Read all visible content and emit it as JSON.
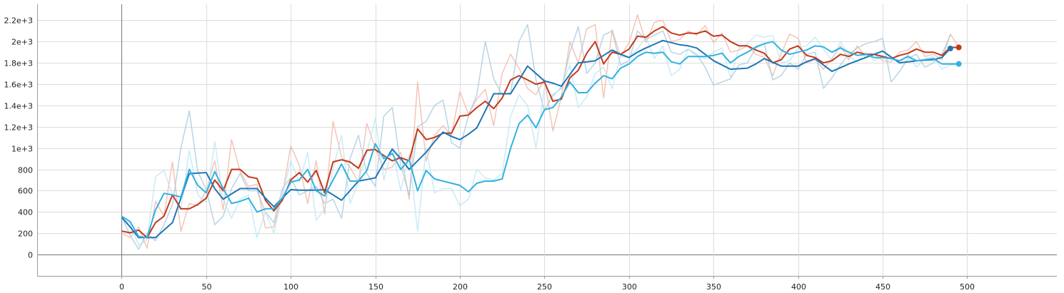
{
  "chart_data": {
    "type": "line",
    "xlim": [
      -50,
      553
    ],
    "ylim": [
      -200,
      2350
    ],
    "x_ticks": [
      0,
      50,
      100,
      150,
      200,
      250,
      300,
      350,
      400,
      450,
      500
    ],
    "x_tick_labels": [
      "0",
      "50",
      "100",
      "150",
      "200",
      "250",
      "300",
      "350",
      "400",
      "450",
      "500"
    ],
    "y_ticks": [
      0,
      200,
      400,
      600,
      800,
      1000,
      1200,
      1400,
      1600,
      1800,
      2000,
      2200
    ],
    "y_tick_labels": [
      "0",
      "200",
      "400",
      "600",
      "800",
      "1e+3",
      "1.2e+3",
      "1.4e+3",
      "1.6e+3",
      "1.8e+3",
      "2e+3",
      "2.2e+3"
    ],
    "grid": true,
    "smoothing": "raw series drawn faint behind smoothed series",
    "series": [
      {
        "color": "#c23a1c",
        "raw_color": "#f1b7a6",
        "end_marker": true,
        "x": [
          0,
          5,
          10,
          15,
          20,
          25,
          30,
          35,
          40,
          45,
          50,
          55,
          60,
          65,
          70,
          75,
          80,
          85,
          90,
          95,
          100,
          105,
          110,
          115,
          120,
          125,
          130,
          135,
          140,
          145,
          150,
          155,
          160,
          165,
          170,
          175,
          180,
          185,
          190,
          195,
          200,
          205,
          210,
          215,
          220,
          225,
          230,
          235,
          240,
          245,
          250,
          255,
          260,
          265,
          270,
          275,
          280,
          285,
          290,
          295,
          300,
          305,
          310,
          315,
          320,
          325,
          330,
          335,
          340,
          345,
          350,
          355,
          360,
          365,
          370,
          375,
          380,
          385,
          390,
          395,
          400,
          405,
          410,
          415,
          420,
          425,
          430,
          435,
          440,
          445,
          450,
          455,
          460,
          465,
          470,
          475,
          480,
          485,
          490,
          495
        ],
        "smoothed": [
          220,
          205,
          230,
          160,
          300,
          360,
          560,
          430,
          430,
          470,
          530,
          700,
          600,
          800,
          800,
          730,
          715,
          510,
          410,
          510,
          700,
          770,
          680,
          790,
          580,
          870,
          890,
          870,
          810,
          980,
          985,
          930,
          880,
          910,
          880,
          1180,
          1080,
          1100,
          1140,
          1140,
          1300,
          1310,
          1380,
          1440,
          1370,
          1470,
          1640,
          1680,
          1640,
          1600,
          1620,
          1440,
          1460,
          1660,
          1730,
          1890,
          2000,
          1790,
          1900,
          1880,
          1930,
          2050,
          2040,
          2100,
          2140,
          2080,
          2060,
          2080,
          2075,
          2100,
          2050,
          2060,
          2000,
          1960,
          1960,
          1920,
          1890,
          1800,
          1830,
          1930,
          1960,
          1870,
          1850,
          1800,
          1820,
          1880,
          1860,
          1900,
          1880,
          1880,
          1860,
          1840,
          1870,
          1890,
          1930,
          1900,
          1900,
          1870,
          1945,
          1945
        ],
        "raw": [
          200,
          160,
          260,
          60,
          500,
          360,
          870,
          220,
          480,
          460,
          600,
          880,
          420,
          1080,
          780,
          640,
          660,
          250,
          260,
          560,
          1020,
          840,
          480,
          880,
          380,
          1250,
          920,
          820,
          680,
          1230,
          1000,
          800,
          820,
          960,
          520,
          1620,
          880,
          1120,
          1210,
          1120,
          1530,
          1320,
          1460,
          1550,
          1210,
          1700,
          1880,
          1750,
          1560,
          1500,
          1650,
          1160,
          1480,
          2000,
          1800,
          2120,
          2160,
          1470,
          2110,
          1860,
          1990,
          2250,
          1990,
          2180,
          2200,
          2000,
          2020,
          2100,
          2060,
          2150,
          1990,
          2080,
          1900,
          1920,
          1960,
          1880,
          1850,
          1680,
          1890,
          2070,
          2030,
          1800,
          1830,
          1740,
          1840,
          1960,
          1830,
          1960,
          1850,
          1880,
          1820,
          1810,
          1900,
          1920,
          2000,
          1860,
          1880,
          1830,
          2070,
          1950
        ]
      },
      {
        "color": "#1f77b4",
        "raw_color": "#a7c9df",
        "end_marker": true,
        "x": [
          0,
          5,
          10,
          15,
          20,
          25,
          30,
          35,
          40,
          45,
          50,
          55,
          60,
          65,
          70,
          75,
          80,
          85,
          90,
          95,
          100,
          105,
          110,
          115,
          120,
          125,
          130,
          135,
          140,
          145,
          150,
          155,
          160,
          165,
          170,
          175,
          180,
          185,
          190,
          195,
          200,
          205,
          210,
          215,
          220,
          225,
          230,
          235,
          240,
          245,
          250,
          255,
          260,
          265,
          270,
          275,
          280,
          285,
          290,
          295,
          300,
          305,
          310,
          315,
          320,
          325,
          330,
          335,
          340,
          345,
          350,
          355,
          360,
          365,
          370,
          375,
          380,
          385,
          390,
          395,
          400,
          405,
          410,
          415,
          420,
          425,
          430,
          435,
          440,
          445,
          450,
          455,
          460,
          465,
          470,
          475,
          480,
          485,
          490
        ],
        "smoothed": [
          350,
          260,
          160,
          160,
          160,
          230,
          300,
          530,
          760,
          765,
          770,
          620,
          520,
          570,
          620,
          620,
          620,
          530,
          450,
          530,
          610,
          605,
          605,
          605,
          610,
          560,
          510,
          600,
          690,
          705,
          720,
          860,
          990,
          900,
          800,
          880,
          960,
          1060,
          1150,
          1110,
          1080,
          1130,
          1190,
          1350,
          1510,
          1510,
          1510,
          1640,
          1770,
          1700,
          1630,
          1610,
          1580,
          1690,
          1800,
          1810,
          1820,
          1870,
          1920,
          1880,
          1850,
          1900,
          1940,
          1975,
          2010,
          1990,
          1970,
          1960,
          1940,
          1880,
          1820,
          1780,
          1740,
          1745,
          1750,
          1790,
          1840,
          1805,
          1770,
          1770,
          1770,
          1810,
          1840,
          1780,
          1720,
          1755,
          1790,
          1820,
          1850,
          1880,
          1910,
          1855,
          1800,
          1810,
          1820,
          1825,
          1830,
          1850,
          1935
        ],
        "raw": [
          360,
          180,
          50,
          200,
          130,
          280,
          470,
          1000,
          1350,
          780,
          610,
          280,
          360,
          620,
          760,
          600,
          600,
          400,
          300,
          620,
          720,
          560,
          600,
          640,
          480,
          520,
          340,
          900,
          1120,
          760,
          640,
          1300,
          1380,
          840,
          560,
          1200,
          1250,
          1400,
          1450,
          1050,
          1000,
          1300,
          1500,
          2000,
          1650,
          1500,
          1520,
          2000,
          2160,
          1640,
          1350,
          1500,
          1560,
          1900,
          2140,
          1700,
          1800,
          2060,
          2100,
          1780,
          1820,
          2100,
          2020,
          2060,
          2100,
          1900,
          1880,
          1930,
          1880,
          1760,
          1590,
          1620,
          1650,
          1780,
          1800,
          1940,
          1980,
          1640,
          1680,
          1800,
          1740,
          1880,
          1900,
          1560,
          1660,
          1780,
          1880,
          1940,
          1980,
          2000,
          2030,
          1620,
          1720,
          1840,
          1880,
          1760,
          1800,
          1880,
          2060
        ]
      },
      {
        "color": "#32b2e1",
        "raw_color": "#bde6f5",
        "end_marker": true,
        "x": [
          0,
          5,
          10,
          15,
          20,
          25,
          30,
          35,
          40,
          45,
          50,
          55,
          60,
          65,
          70,
          75,
          80,
          85,
          90,
          95,
          100,
          105,
          110,
          115,
          120,
          125,
          130,
          135,
          140,
          145,
          150,
          155,
          160,
          165,
          170,
          175,
          180,
          185,
          190,
          195,
          200,
          205,
          210,
          215,
          220,
          225,
          230,
          235,
          240,
          245,
          250,
          255,
          260,
          265,
          270,
          275,
          280,
          285,
          290,
          295,
          300,
          305,
          310,
          315,
          320,
          325,
          330,
          335,
          340,
          345,
          350,
          355,
          360,
          365,
          370,
          375,
          380,
          385,
          390,
          395,
          400,
          405,
          410,
          415,
          420,
          425,
          430,
          435,
          440,
          445,
          450,
          455,
          460,
          465,
          470,
          475,
          480,
          485,
          490,
          495
        ],
        "smoothed": [
          360,
          310,
          170,
          160,
          420,
          575,
          560,
          540,
          800,
          650,
          580,
          780,
          620,
          480,
          500,
          530,
          400,
          430,
          430,
          530,
          680,
          700,
          800,
          600,
          550,
          700,
          850,
          690,
          690,
          790,
          1040,
          900,
          950,
          800,
          890,
          600,
          790,
          710,
          690,
          670,
          650,
          590,
          670,
          690,
          690,
          710,
          1000,
          1230,
          1310,
          1190,
          1360,
          1380,
          1480,
          1620,
          1520,
          1520,
          1610,
          1680,
          1650,
          1750,
          1790,
          1860,
          1900,
          1890,
          1900,
          1810,
          1790,
          1860,
          1860,
          1860,
          1870,
          1890,
          1800,
          1860,
          1900,
          1950,
          1980,
          2000,
          1920,
          1880,
          1900,
          1920,
          1960,
          1950,
          1900,
          1940,
          1900,
          1870,
          1880,
          1850,
          1850,
          1840,
          1820,
          1860,
          1820,
          1830,
          1840,
          1790,
          1790,
          1790
        ],
        "raw": [
          340,
          290,
          90,
          140,
          730,
          790,
          560,
          420,
          980,
          560,
          490,
          1060,
          520,
          340,
          520,
          560,
          160,
          400,
          200,
          560,
          880,
          680,
          960,
          320,
          430,
          800,
          1120,
          480,
          680,
          960,
          1280,
          700,
          1000,
          600,
          940,
          220,
          1000,
          580,
          620,
          620,
          460,
          520,
          800,
          720,
          700,
          760,
          1300,
          1500,
          1400,
          1000,
          1560,
          1480,
          1580,
          1780,
          1380,
          1480,
          1700,
          1760,
          1560,
          1860,
          1850,
          1930,
          2040,
          1840,
          1960,
          1680,
          1740,
          1930,
          1860,
          1840,
          1900,
          1940,
          1660,
          1940,
          1980,
          2060,
          2040,
          2060,
          1800,
          1820,
          1940,
          1960,
          2040,
          1930,
          1820,
          2000,
          1860,
          1810,
          1900,
          1820,
          1860,
          1840,
          1800,
          1880,
          1760,
          1840,
          1860,
          1740,
          1780,
          1790
        ]
      }
    ]
  }
}
